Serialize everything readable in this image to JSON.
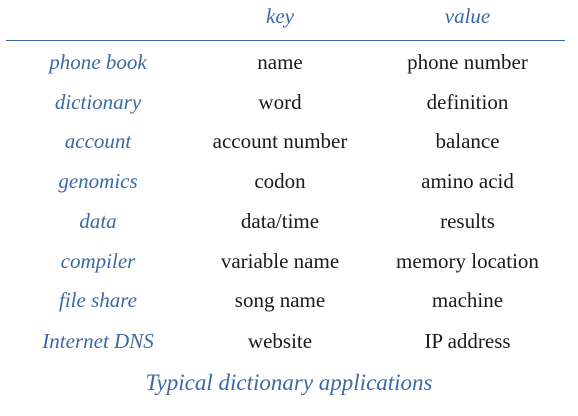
{
  "table": {
    "header": {
      "key": "key",
      "value": "value"
    },
    "rows": [
      {
        "application": "phone book",
        "key": "name",
        "value": "phone number"
      },
      {
        "application": "dictionary",
        "key": "word",
        "value": "definition"
      },
      {
        "application": "account",
        "key": "account number",
        "value": "balance"
      },
      {
        "application": "genomics",
        "key": "codon",
        "value": "amino acid"
      },
      {
        "application": "data",
        "key": "data/time",
        "value": "results"
      },
      {
        "application": "compiler",
        "key": "variable name",
        "value": "memory location"
      },
      {
        "application": "file share",
        "key": "song name",
        "value": "machine"
      },
      {
        "application": "Internet DNS",
        "key": "website",
        "value": "IP address"
      }
    ]
  },
  "caption": "Typical dictionary applications",
  "colors": {
    "accent": "#3a6aa6",
    "text": "#1a1a1a",
    "background": "#ffffff"
  }
}
